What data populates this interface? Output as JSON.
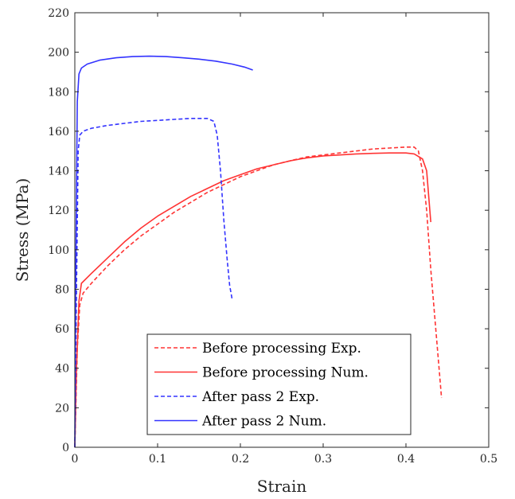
{
  "chart_data": {
    "type": "line",
    "title": "",
    "xlabel": "Strain",
    "ylabel": "Stress (MPa)",
    "xlim": [
      0,
      0.5
    ],
    "ylim": [
      0,
      220
    ],
    "x_ticks": [
      0,
      0.1,
      0.2,
      0.3,
      0.4,
      0.5
    ],
    "x_tick_labels": [
      "0",
      "0.1",
      "0.2",
      "0.3",
      "0.4",
      "0.5"
    ],
    "y_ticks": [
      0,
      20,
      40,
      60,
      80,
      100,
      120,
      140,
      160,
      180,
      200,
      220
    ],
    "y_tick_labels": [
      "0",
      "20",
      "40",
      "60",
      "80",
      "100",
      "120",
      "140",
      "160",
      "180",
      "200",
      "220"
    ],
    "grid": false,
    "legend_position": "bottom-right",
    "series": [
      {
        "name": "Before processing Exp.",
        "color": "#ff3333",
        "dash": "dashed",
        "x": [
          0,
          0.003,
          0.006,
          0.01,
          0.02,
          0.04,
          0.06,
          0.08,
          0.1,
          0.12,
          0.14,
          0.16,
          0.18,
          0.2,
          0.22,
          0.24,
          0.26,
          0.28,
          0.3,
          0.32,
          0.34,
          0.36,
          0.38,
          0.4,
          0.41,
          0.415,
          0.42,
          0.425,
          0.43,
          0.435,
          0.44,
          0.443
        ],
        "y": [
          0,
          50,
          72,
          78,
          83,
          92,
          100,
          107,
          113,
          119,
          124,
          129,
          133,
          137,
          140,
          143,
          145,
          147,
          148,
          149,
          150,
          151,
          151.5,
          152,
          152,
          150,
          140,
          120,
          90,
          65,
          40,
          25
        ]
      },
      {
        "name": "Before processing Num.",
        "color": "#ff3333",
        "dash": "solid",
        "x": [
          0,
          0.002,
          0.005,
          0.008,
          0.02,
          0.04,
          0.06,
          0.08,
          0.1,
          0.12,
          0.14,
          0.16,
          0.18,
          0.2,
          0.22,
          0.24,
          0.26,
          0.28,
          0.3,
          0.32,
          0.34,
          0.36,
          0.38,
          0.4,
          0.41,
          0.42,
          0.425,
          0.43
        ],
        "y": [
          0,
          40,
          74,
          83,
          88,
          96,
          104,
          111,
          117,
          122,
          127,
          131,
          135,
          138,
          141,
          143,
          145,
          146.5,
          147.5,
          148,
          148.5,
          148.8,
          149,
          149,
          148.5,
          146,
          140,
          114
        ]
      },
      {
        "name": "After pass 2 Exp.",
        "color": "#3333ff",
        "dash": "dashed",
        "x": [
          0,
          0.002,
          0.004,
          0.006,
          0.01,
          0.02,
          0.04,
          0.06,
          0.08,
          0.1,
          0.12,
          0.14,
          0.16,
          0.168,
          0.172,
          0.176,
          0.18,
          0.184,
          0.187,
          0.19
        ],
        "y": [
          0,
          80,
          150,
          158,
          160,
          161.5,
          163,
          164,
          165,
          165.5,
          166,
          166.5,
          166.5,
          165,
          158,
          140,
          115,
          95,
          82,
          75
        ]
      },
      {
        "name": "After pass 2 Num.",
        "color": "#3333ff",
        "dash": "solid",
        "x": [
          0,
          0.001,
          0.003,
          0.005,
          0.008,
          0.015,
          0.03,
          0.05,
          0.07,
          0.09,
          0.11,
          0.13,
          0.15,
          0.17,
          0.19,
          0.205,
          0.215
        ],
        "y": [
          0,
          80,
          175,
          189,
          192,
          194,
          196,
          197.2,
          197.8,
          198,
          197.8,
          197.2,
          196.5,
          195.5,
          194,
          192.5,
          191
        ]
      }
    ]
  }
}
